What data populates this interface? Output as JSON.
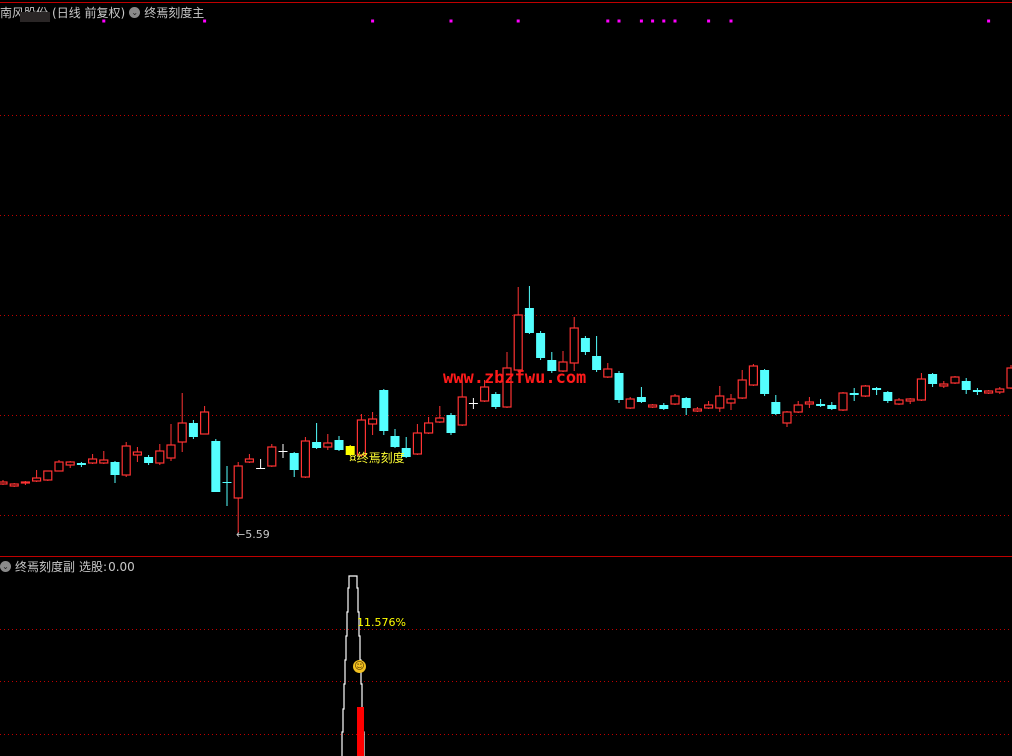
{
  "main_panel": {
    "stock_name": "南风股份",
    "period": "(日线 前复权)",
    "indicator_name": "终焉刻度主",
    "signal_label": "¤终焉刻度",
    "low_label": "←5.59",
    "watermark": "www.zbzfwu.com"
  },
  "sub_panel": {
    "indicator_name": "终焉刻度副",
    "select_label": "选股:",
    "select_value": "0.00",
    "percent_label": "11.576%",
    "smiley_icon": "smiley-icon"
  },
  "colors": {
    "up": "#ff3333",
    "down": "#54ffff",
    "flat": "#ffffff",
    "signal": "#ffff00",
    "marker": "#ff00ff",
    "grid": "#c00000",
    "spike": "#ffffff",
    "bar": "#ff0000"
  },
  "chart_data": {
    "type": "candlestick",
    "ohlc_fields": [
      "open",
      "high",
      "low",
      "close"
    ],
    "low_marker": 5.59,
    "signal_index": 31,
    "marker_dot_indices": [
      9,
      18,
      33,
      40,
      46,
      54,
      55,
      57,
      58,
      59,
      60,
      63,
      65,
      88
    ],
    "candles": [
      [
        6.08,
        6.12,
        6.07,
        6.1
      ],
      [
        6.06,
        6.09,
        6.05,
        6.08
      ],
      [
        6.09,
        6.11,
        6.07,
        6.1
      ],
      [
        6.11,
        6.22,
        6.1,
        6.14
      ],
      [
        6.12,
        6.21,
        6.11,
        6.21
      ],
      [
        6.21,
        6.32,
        6.21,
        6.3
      ],
      [
        6.27,
        6.31,
        6.24,
        6.3
      ],
      [
        6.29,
        6.3,
        6.25,
        6.27
      ],
      [
        6.29,
        6.38,
        6.28,
        6.33
      ],
      [
        6.29,
        6.41,
        6.28,
        6.32
      ],
      [
        6.3,
        6.31,
        6.09,
        6.17
      ],
      [
        6.17,
        6.5,
        6.15,
        6.46
      ],
      [
        6.37,
        6.45,
        6.3,
        6.4
      ],
      [
        6.35,
        6.37,
        6.27,
        6.29
      ],
      [
        6.29,
        6.48,
        6.27,
        6.41
      ],
      [
        6.34,
        6.68,
        6.31,
        6.47
      ],
      [
        6.5,
        6.99,
        6.4,
        6.69
      ],
      [
        6.69,
        6.72,
        6.53,
        6.55
      ],
      [
        6.58,
        6.86,
        6.58,
        6.8
      ],
      [
        6.51,
        6.53,
        6.0,
        6.0
      ],
      [
        6.1,
        6.26,
        5.86,
        6.09
      ],
      [
        5.94,
        6.3,
        5.59,
        6.26
      ],
      [
        6.3,
        6.38,
        6.29,
        6.33
      ],
      [
        6.24,
        6.33,
        6.24,
        6.24
      ],
      [
        6.26,
        6.48,
        6.25,
        6.45
      ],
      [
        6.41,
        6.48,
        6.34,
        6.41
      ],
      [
        6.39,
        6.4,
        6.15,
        6.22
      ],
      [
        6.15,
        6.55,
        6.14,
        6.51
      ],
      [
        6.5,
        6.69,
        6.43,
        6.44
      ],
      [
        6.45,
        6.58,
        6.42,
        6.49
      ],
      [
        6.52,
        6.56,
        6.41,
        6.42
      ],
      [
        6.46,
        6.47,
        6.37,
        6.37
      ],
      [
        6.37,
        6.78,
        6.35,
        6.72
      ],
      [
        6.68,
        6.8,
        6.57,
        6.73
      ],
      [
        7.02,
        7.03,
        6.57,
        6.61
      ],
      [
        6.56,
        6.63,
        6.44,
        6.45
      ],
      [
        6.44,
        6.55,
        6.34,
        6.35
      ],
      [
        6.38,
        6.68,
        6.37,
        6.59
      ],
      [
        6.59,
        6.75,
        6.58,
        6.69
      ],
      [
        6.7,
        6.86,
        6.69,
        6.74
      ],
      [
        6.77,
        6.79,
        6.57,
        6.59
      ],
      [
        6.67,
        7.17,
        6.66,
        6.95
      ],
      [
        6.89,
        6.94,
        6.83,
        6.89
      ],
      [
        6.91,
        7.12,
        6.9,
        7.05
      ],
      [
        6.98,
        7.0,
        6.83,
        6.85
      ],
      [
        6.85,
        7.4,
        6.84,
        7.24
      ],
      [
        7.22,
        8.05,
        7.2,
        7.77
      ],
      [
        7.84,
        8.06,
        7.58,
        7.59
      ],
      [
        7.59,
        7.61,
        7.32,
        7.34
      ],
      [
        7.32,
        7.4,
        7.19,
        7.21
      ],
      [
        7.21,
        7.41,
        7.2,
        7.3
      ],
      [
        7.29,
        7.75,
        7.21,
        7.64
      ],
      [
        7.54,
        7.56,
        7.37,
        7.4
      ],
      [
        7.36,
        7.56,
        7.2,
        7.22
      ],
      [
        7.15,
        7.29,
        7.14,
        7.23
      ],
      [
        7.19,
        7.21,
        6.89,
        6.92
      ],
      [
        6.84,
        6.95,
        6.83,
        6.93
      ],
      [
        6.95,
        7.05,
        6.89,
        6.9
      ],
      [
        6.85,
        6.88,
        6.84,
        6.87
      ],
      [
        6.87,
        6.89,
        6.82,
        6.83
      ],
      [
        6.88,
        6.98,
        6.87,
        6.96
      ],
      [
        6.94,
        6.95,
        6.77,
        6.84
      ],
      [
        6.81,
        6.85,
        6.8,
        6.83
      ],
      [
        6.84,
        6.91,
        6.83,
        6.87
      ],
      [
        6.84,
        7.06,
        6.8,
        6.96
      ],
      [
        6.89,
        6.98,
        6.82,
        6.93
      ],
      [
        6.94,
        7.22,
        6.93,
        7.12
      ],
      [
        7.07,
        7.28,
        7.06,
        7.26
      ],
      [
        7.22,
        7.23,
        6.96,
        6.98
      ],
      [
        6.9,
        6.97,
        6.77,
        6.78
      ],
      [
        6.69,
        6.81,
        6.65,
        6.8
      ],
      [
        6.8,
        6.91,
        6.79,
        6.87
      ],
      [
        6.88,
        6.95,
        6.84,
        6.9
      ],
      [
        6.88,
        6.93,
        6.85,
        6.86
      ],
      [
        6.87,
        6.9,
        6.82,
        6.83
      ],
      [
        6.82,
        7.0,
        6.81,
        6.99
      ],
      [
        6.99,
        7.04,
        6.91,
        6.97
      ],
      [
        6.96,
        7.07,
        6.95,
        7.06
      ],
      [
        7.04,
        7.05,
        6.97,
        7.02
      ],
      [
        7.0,
        7.01,
        6.89,
        6.91
      ],
      [
        6.88,
        6.94,
        6.87,
        6.92
      ],
      [
        6.91,
        6.94,
        6.88,
        6.93
      ],
      [
        6.92,
        7.19,
        6.91,
        7.13
      ],
      [
        7.18,
        7.19,
        7.05,
        7.08
      ],
      [
        7.06,
        7.11,
        7.04,
        7.08
      ],
      [
        7.09,
        7.16,
        7.08,
        7.15
      ],
      [
        7.11,
        7.14,
        6.98,
        7.02
      ],
      [
        7.02,
        7.04,
        6.97,
        7.0
      ],
      [
        6.99,
        7.02,
        6.98,
        7.01
      ],
      [
        7.0,
        7.05,
        6.98,
        7.03
      ],
      [
        7.04,
        7.27,
        7.03,
        7.24
      ]
    ]
  }
}
